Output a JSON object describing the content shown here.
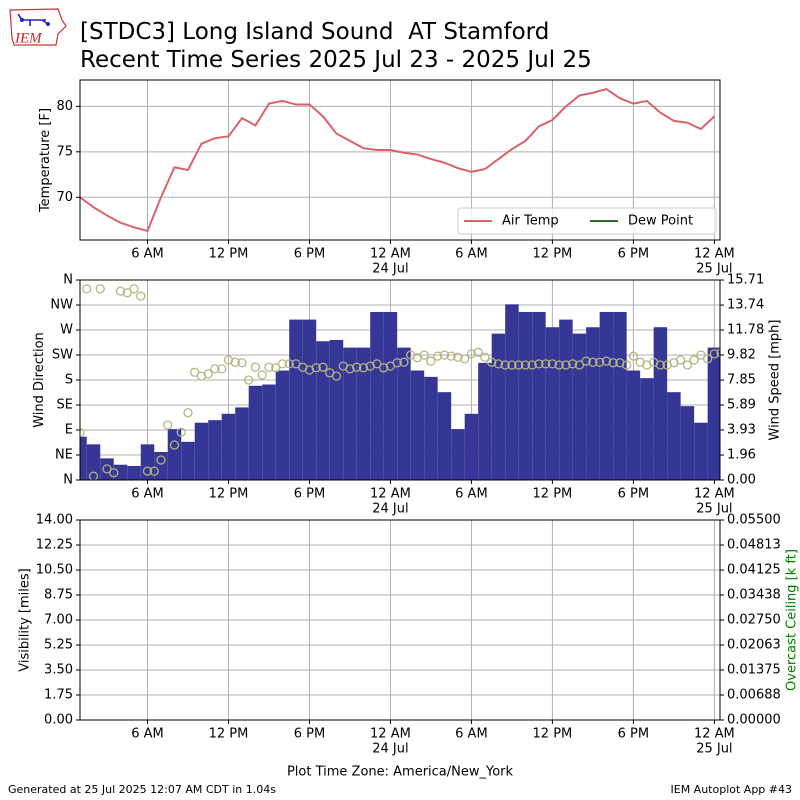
{
  "header": {
    "logo": "IEM",
    "title": "[STDC3] Long Island Sound  AT Stamford",
    "subtitle": "Recent Time Series 2025 Jul 23 - 2025 Jul 25"
  },
  "footer": {
    "left": "Generated at 25 Jul 2025 12:07 AM CDT in 1.04s",
    "right": "IEM Autoplot App #43"
  },
  "chart_data": [
    {
      "type": "line",
      "ylabel": "Temperature [F]",
      "xlim": [
        "2025-07-23T01:00",
        "2025-07-25T00:25"
      ],
      "xticks": [
        {
          "value": "2025-07-23T06:00",
          "label": "6 AM"
        },
        {
          "value": "2025-07-23T12:00",
          "label": "12 PM"
        },
        {
          "value": "2025-07-23T18:00",
          "label": "6 PM"
        },
        {
          "value": "2025-07-24T00:00",
          "label": "12 AM"
        },
        {
          "value": "2025-07-24T06:00",
          "label": "6 AM"
        },
        {
          "value": "2025-07-24T12:00",
          "label": "12 PM"
        },
        {
          "value": "2025-07-24T18:00",
          "label": "6 PM"
        },
        {
          "value": "2025-07-25T00:00",
          "label": "12 AM"
        }
      ],
      "xtick_dates": [
        {
          "value": "2025-07-24T00:00",
          "label": "24 Jul"
        },
        {
          "value": "2025-07-25T00:00",
          "label": "25 Jul"
        }
      ],
      "ylim": [
        65.3,
        82.9
      ],
      "yticks": [
        70,
        75,
        80
      ],
      "grid": true,
      "legend": "lower right",
      "x": [
        "2025-07-23T01:00",
        "2025-07-23T02:00",
        "2025-07-23T03:00",
        "2025-07-23T04:00",
        "2025-07-23T05:00",
        "2025-07-23T06:00",
        "2025-07-23T07:00",
        "2025-07-23T08:00",
        "2025-07-23T09:00",
        "2025-07-23T10:00",
        "2025-07-23T11:00",
        "2025-07-23T12:00",
        "2025-07-23T13:00",
        "2025-07-23T14:00",
        "2025-07-23T15:00",
        "2025-07-23T16:00",
        "2025-07-23T17:00",
        "2025-07-23T18:00",
        "2025-07-23T19:00",
        "2025-07-23T20:00",
        "2025-07-23T21:00",
        "2025-07-23T22:00",
        "2025-07-23T23:00",
        "2025-07-24T00:00",
        "2025-07-24T01:00",
        "2025-07-24T02:00",
        "2025-07-24T03:00",
        "2025-07-24T04:00",
        "2025-07-24T05:00",
        "2025-07-24T06:00",
        "2025-07-24T07:00",
        "2025-07-24T08:00",
        "2025-07-24T09:00",
        "2025-07-24T10:00",
        "2025-07-24T11:00",
        "2025-07-24T12:00",
        "2025-07-24T13:00",
        "2025-07-24T14:00",
        "2025-07-24T15:00",
        "2025-07-24T16:00",
        "2025-07-24T17:00",
        "2025-07-24T18:00",
        "2025-07-24T19:00",
        "2025-07-24T20:00",
        "2025-07-24T21:00",
        "2025-07-24T22:00",
        "2025-07-24T23:00",
        "2025-07-25T00:00"
      ],
      "series": [
        {
          "name": "Air Temp",
          "type": "line",
          "color": "#d9636b",
          "values": [
            70.0,
            68.9,
            68.0,
            67.2,
            66.7,
            66.3,
            70.0,
            73.3,
            73.0,
            75.9,
            76.5,
            76.7,
            78.7,
            77.9,
            80.3,
            80.6,
            80.2,
            80.2,
            78.9,
            77.0,
            76.2,
            75.4,
            75.2,
            75.2,
            74.9,
            74.7,
            74.2,
            73.8,
            73.2,
            72.8,
            73.1,
            74.2,
            75.3,
            76.2,
            77.8,
            78.5,
            80.0,
            81.2,
            81.5,
            81.9,
            80.9,
            80.3,
            80.6,
            79.3,
            78.4,
            78.2,
            77.5,
            78.9
          ]
        },
        {
          "name": "Dew Point",
          "type": "line",
          "color": "#2d6a2d",
          "values": [
            null,
            null,
            null,
            null,
            null,
            null,
            null,
            null,
            null,
            null,
            null,
            null,
            null,
            null,
            null,
            null,
            null,
            null,
            null,
            null,
            null,
            null,
            null,
            null,
            null,
            null,
            null,
            null,
            null,
            null,
            null,
            null,
            null,
            null,
            null,
            null,
            null,
            null,
            null,
            null,
            null,
            null,
            null,
            null,
            null,
            null,
            null,
            null
          ]
        }
      ]
    },
    {
      "type": "combo",
      "ylabel": "Wind Direction",
      "y2label": "Wind Speed [mph]",
      "xlim": [
        "2025-07-23T01:00",
        "2025-07-25T00:25"
      ],
      "xticks": [
        {
          "value": "2025-07-23T06:00",
          "label": "6 AM"
        },
        {
          "value": "2025-07-23T12:00",
          "label": "12 PM"
        },
        {
          "value": "2025-07-23T18:00",
          "label": "6 PM"
        },
        {
          "value": "2025-07-24T00:00",
          "label": "12 AM"
        },
        {
          "value": "2025-07-24T06:00",
          "label": "6 AM"
        },
        {
          "value": "2025-07-24T12:00",
          "label": "12 PM"
        },
        {
          "value": "2025-07-24T18:00",
          "label": "6 PM"
        },
        {
          "value": "2025-07-25T00:00",
          "label": "12 AM"
        }
      ],
      "xtick_dates": [
        {
          "value": "2025-07-24T00:00",
          "label": "24 Jul"
        },
        {
          "value": "2025-07-25T00:00",
          "label": "25 Jul"
        }
      ],
      "ylim": [
        0,
        360
      ],
      "yticks": [
        {
          "value": 0,
          "label": "N"
        },
        {
          "value": 45,
          "label": "NE"
        },
        {
          "value": 90,
          "label": "E"
        },
        {
          "value": 135,
          "label": "SE"
        },
        {
          "value": 180,
          "label": "S"
        },
        {
          "value": 225,
          "label": "SW"
        },
        {
          "value": 270,
          "label": "W"
        },
        {
          "value": 315,
          "label": "NW"
        },
        {
          "value": 360,
          "label": "N"
        }
      ],
      "y2lim": [
        0,
        15.71
      ],
      "y2ticks": [
        {
          "value": 0,
          "label": "0.00"
        },
        1.96,
        3.93,
        5.89,
        7.85,
        9.82,
        11.78,
        13.74,
        15.71
      ],
      "grid": true,
      "x": [
        "2025-07-23T01:00",
        "2025-07-23T02:00",
        "2025-07-23T03:00",
        "2025-07-23T04:00",
        "2025-07-23T05:00",
        "2025-07-23T06:00",
        "2025-07-23T07:00",
        "2025-07-23T08:00",
        "2025-07-23T09:00",
        "2025-07-23T10:00",
        "2025-07-23T11:00",
        "2025-07-23T12:00",
        "2025-07-23T13:00",
        "2025-07-23T14:00",
        "2025-07-23T15:00",
        "2025-07-23T16:00",
        "2025-07-23T17:00",
        "2025-07-23T18:00",
        "2025-07-23T19:00",
        "2025-07-23T20:00",
        "2025-07-23T21:00",
        "2025-07-23T22:00",
        "2025-07-23T23:00",
        "2025-07-24T00:00",
        "2025-07-24T01:00",
        "2025-07-24T02:00",
        "2025-07-24T03:00",
        "2025-07-24T04:00",
        "2025-07-24T05:00",
        "2025-07-24T06:00",
        "2025-07-24T07:00",
        "2025-07-24T08:00",
        "2025-07-24T09:00",
        "2025-07-24T10:00",
        "2025-07-24T11:00",
        "2025-07-24T12:00",
        "2025-07-24T13:00",
        "2025-07-24T14:00",
        "2025-07-24T15:00",
        "2025-07-24T16:00",
        "2025-07-24T17:00",
        "2025-07-24T18:00",
        "2025-07-24T19:00",
        "2025-07-24T20:00",
        "2025-07-24T21:00",
        "2025-07-24T22:00",
        "2025-07-24T23:00",
        "2025-07-25T00:00"
      ],
      "series": [
        {
          "type": "bar",
          "axis": "y2",
          "color": "#363696",
          "values": [
            3.4,
            2.8,
            1.7,
            1.2,
            1.1,
            2.8,
            2.2,
            4.0,
            3.0,
            4.5,
            4.7,
            5.2,
            5.7,
            7.4,
            7.5,
            8.6,
            12.6,
            12.6,
            10.9,
            11.0,
            10.4,
            10.4,
            13.2,
            13.2,
            10.4,
            8.6,
            8.1,
            6.9,
            4.0,
            5.2,
            9.2,
            11.5,
            13.8,
            13.2,
            13.2,
            12.0,
            12.6,
            11.5,
            12.0,
            13.2,
            13.2,
            8.6,
            8.0,
            12.0,
            6.9,
            5.8,
            4.5,
            10.4
          ]
        },
        {
          "type": "scatter",
          "color": "#b4b67f",
          "x": [
            "2025-07-23T01:00",
            "2025-07-23T01:30",
            "2025-07-23T02:00",
            "2025-07-23T02:30",
            "2025-07-23T03:00",
            "2025-07-23T03:30",
            "2025-07-23T04:00",
            "2025-07-23T04:30",
            "2025-07-23T05:00",
            "2025-07-23T05:30",
            "2025-07-23T06:00",
            "2025-07-23T06:30",
            "2025-07-23T07:00",
            "2025-07-23T07:30",
            "2025-07-23T08:00",
            "2025-07-23T08:30",
            "2025-07-23T09:00",
            "2025-07-23T09:30",
            "2025-07-23T10:00",
            "2025-07-23T10:30",
            "2025-07-23T11:00",
            "2025-07-23T11:30",
            "2025-07-23T12:00",
            "2025-07-23T12:30",
            "2025-07-23T13:00",
            "2025-07-23T13:30",
            "2025-07-23T14:00",
            "2025-07-23T14:30",
            "2025-07-23T15:00",
            "2025-07-23T15:30",
            "2025-07-23T16:00",
            "2025-07-23T16:30",
            "2025-07-23T17:00",
            "2025-07-23T17:30",
            "2025-07-23T18:00",
            "2025-07-23T18:30",
            "2025-07-23T19:00",
            "2025-07-23T19:30",
            "2025-07-23T20:00",
            "2025-07-23T20:30",
            "2025-07-23T21:00",
            "2025-07-23T21:30",
            "2025-07-23T22:00",
            "2025-07-23T22:30",
            "2025-07-23T23:00",
            "2025-07-23T23:30",
            "2025-07-24T00:00",
            "2025-07-24T00:30",
            "2025-07-24T01:00",
            "2025-07-24T01:30",
            "2025-07-24T02:00",
            "2025-07-24T02:30",
            "2025-07-24T03:00",
            "2025-07-24T03:30",
            "2025-07-24T04:00",
            "2025-07-24T04:30",
            "2025-07-24T05:00",
            "2025-07-24T05:30",
            "2025-07-24T06:00",
            "2025-07-24T06:30",
            "2025-07-24T07:00",
            "2025-07-24T07:30",
            "2025-07-24T08:00",
            "2025-07-24T08:30",
            "2025-07-24T09:00",
            "2025-07-24T09:30",
            "2025-07-24T10:00",
            "2025-07-24T10:30",
            "2025-07-24T11:00",
            "2025-07-24T11:30",
            "2025-07-24T12:00",
            "2025-07-24T12:30",
            "2025-07-24T13:00",
            "2025-07-24T13:30",
            "2025-07-24T14:00",
            "2025-07-24T14:30",
            "2025-07-24T15:00",
            "2025-07-24T15:30",
            "2025-07-24T16:00",
            "2025-07-24T16:30",
            "2025-07-24T17:00",
            "2025-07-24T17:30",
            "2025-07-24T18:00",
            "2025-07-24T18:30",
            "2025-07-24T19:00",
            "2025-07-24T19:30",
            "2025-07-24T20:00",
            "2025-07-24T20:30",
            "2025-07-24T21:00",
            "2025-07-24T21:30",
            "2025-07-24T22:00",
            "2025-07-24T22:30",
            "2025-07-24T23:00",
            "2025-07-24T23:30",
            "2025-07-25T00:00",
            "2025-07-25T00:30"
          ],
          "values": [
            85,
            344,
            7,
            344,
            20,
            13,
            340,
            337,
            344,
            331,
            16,
            16,
            36,
            99,
            63,
            86,
            121,
            194,
            187,
            191,
            200,
            200,
            216,
            212,
            211,
            180,
            203,
            189,
            203,
            202,
            209,
            209,
            209,
            203,
            198,
            202,
            203,
            193,
            187,
            205,
            200,
            203,
            202,
            205,
            209,
            202,
            205,
            211,
            212,
            225,
            220,
            225,
            214,
            223,
            225,
            223,
            221,
            218,
            227,
            230,
            221,
            212,
            209,
            207,
            207,
            207,
            207,
            207,
            209,
            209,
            209,
            207,
            207,
            209,
            207,
            214,
            212,
            212,
            214,
            211,
            211,
            207,
            223,
            212,
            207,
            212,
            207,
            207,
            211,
            216,
            207,
            216,
            225,
            218,
            227,
            229
          ]
        }
      ]
    },
    {
      "type": "line",
      "ylabel": "Visibility [miles]",
      "y2label": "Overcast Ceiling [k ft]",
      "y2label_color": "#008000",
      "xlabel": "Plot Time Zone: America/New_York",
      "xlim": [
        "2025-07-23T01:00",
        "2025-07-25T00:25"
      ],
      "xticks": [
        {
          "value": "2025-07-23T06:00",
          "label": "6 AM"
        },
        {
          "value": "2025-07-23T12:00",
          "label": "12 PM"
        },
        {
          "value": "2025-07-23T18:00",
          "label": "6 PM"
        },
        {
          "value": "2025-07-24T00:00",
          "label": "12 AM"
        },
        {
          "value": "2025-07-24T06:00",
          "label": "6 AM"
        },
        {
          "value": "2025-07-24T12:00",
          "label": "12 PM"
        },
        {
          "value": "2025-07-24T18:00",
          "label": "6 PM"
        },
        {
          "value": "2025-07-25T00:00",
          "label": "12 AM"
        }
      ],
      "xtick_dates": [
        {
          "value": "2025-07-24T00:00",
          "label": "24 Jul"
        },
        {
          "value": "2025-07-25T00:00",
          "label": "25 Jul"
        }
      ],
      "ylim": [
        0,
        14
      ],
      "yticks": [
        {
          "value": 0,
          "label": "0.00"
        },
        1.75,
        {
          "value": 3.5,
          "label": "3.50"
        },
        5.25,
        {
          "value": 7,
          "label": "7.00"
        },
        8.75,
        {
          "value": 10.5,
          "label": "10.50"
        },
        12.25,
        {
          "value": 14,
          "label": "14.00"
        }
      ],
      "y2lim": [
        0,
        0.055
      ],
      "y2ticks": [
        {
          "value": 0,
          "label": "0.00000"
        },
        {
          "value": 0.006875,
          "label": "0.00688"
        },
        {
          "value": 0.01375,
          "label": "0.01375"
        },
        {
          "value": 0.020625,
          "label": "0.02063"
        },
        {
          "value": 0.0275,
          "label": "0.02750"
        },
        {
          "value": 0.034375,
          "label": "0.03438"
        },
        {
          "value": 0.04125,
          "label": "0.04125"
        },
        {
          "value": 0.048125,
          "label": "0.04813"
        },
        {
          "value": 0.055,
          "label": "0.05500"
        }
      ],
      "grid": true
    }
  ]
}
